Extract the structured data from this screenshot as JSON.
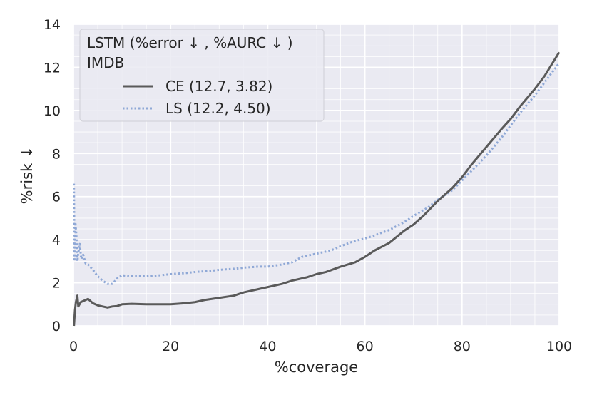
{
  "chart_data": {
    "type": "line",
    "xlabel": "%coverage",
    "ylabel": "%risk ↓",
    "xlim": [
      0,
      100
    ],
    "ylim": [
      0,
      14
    ],
    "xticks": [
      0,
      20,
      40,
      60,
      80,
      100
    ],
    "yticks": [
      0,
      2,
      4,
      6,
      8,
      10,
      12,
      14
    ],
    "grid": true,
    "legend_position": "top-left",
    "legend": {
      "title_line1": "LSTM (%error ↓ , %AURC ↓ )",
      "title_line2": "IMDB"
    },
    "series": [
      {
        "name": "CE (12.7, 3.82)",
        "style": "solid",
        "color": "#5a5a5a",
        "points": [
          [
            0.1,
            0.0
          ],
          [
            0.3,
            0.7
          ],
          [
            0.5,
            1.1
          ],
          [
            0.8,
            1.4
          ],
          [
            1.0,
            0.9
          ],
          [
            1.5,
            1.1
          ],
          [
            2.0,
            1.15
          ],
          [
            2.5,
            1.2
          ],
          [
            3.0,
            1.25
          ],
          [
            3.5,
            1.15
          ],
          [
            4.0,
            1.05
          ],
          [
            4.5,
            1.0
          ],
          [
            5.0,
            0.95
          ],
          [
            6.0,
            0.9
          ],
          [
            7.0,
            0.85
          ],
          [
            8.0,
            0.9
          ],
          [
            9.0,
            0.92
          ],
          [
            10.0,
            1.0
          ],
          [
            12.0,
            1.02
          ],
          [
            15.0,
            1.0
          ],
          [
            17.0,
            1.0
          ],
          [
            20.0,
            1.0
          ],
          [
            23.0,
            1.05
          ],
          [
            25.0,
            1.1
          ],
          [
            27.0,
            1.2
          ],
          [
            30.0,
            1.3
          ],
          [
            33.0,
            1.4
          ],
          [
            35.0,
            1.55
          ],
          [
            37.0,
            1.65
          ],
          [
            40.0,
            1.8
          ],
          [
            43.0,
            1.95
          ],
          [
            45.0,
            2.1
          ],
          [
            48.0,
            2.25
          ],
          [
            50.0,
            2.4
          ],
          [
            52.0,
            2.5
          ],
          [
            55.0,
            2.75
          ],
          [
            58.0,
            2.95
          ],
          [
            60.0,
            3.2
          ],
          [
            62.0,
            3.5
          ],
          [
            65.0,
            3.85
          ],
          [
            68.0,
            4.4
          ],
          [
            70.0,
            4.7
          ],
          [
            72.0,
            5.1
          ],
          [
            75.0,
            5.8
          ],
          [
            78.0,
            6.4
          ],
          [
            80.0,
            6.9
          ],
          [
            82.0,
            7.5
          ],
          [
            85.0,
            8.3
          ],
          [
            88.0,
            9.1
          ],
          [
            90.0,
            9.6
          ],
          [
            92.0,
            10.2
          ],
          [
            95.0,
            11.0
          ],
          [
            97.0,
            11.6
          ],
          [
            100.0,
            12.7
          ]
        ]
      },
      {
        "name": "LS (12.2, 4.50)",
        "style": "dotted",
        "color": "#8fa8d6",
        "points": [
          [
            0.1,
            6.6
          ],
          [
            0.2,
            3.0
          ],
          [
            0.4,
            4.8
          ],
          [
            0.6,
            4.2
          ],
          [
            0.8,
            3.0
          ],
          [
            1.0,
            3.4
          ],
          [
            1.3,
            3.8
          ],
          [
            1.6,
            3.1
          ],
          [
            2.0,
            3.3
          ],
          [
            2.5,
            2.9
          ],
          [
            3.0,
            2.85
          ],
          [
            4.0,
            2.6
          ],
          [
            5.0,
            2.3
          ],
          [
            6.0,
            2.1
          ],
          [
            7.0,
            1.95
          ],
          [
            8.0,
            1.95
          ],
          [
            9.0,
            2.2
          ],
          [
            10.0,
            2.35
          ],
          [
            12.0,
            2.3
          ],
          [
            15.0,
            2.3
          ],
          [
            18.0,
            2.35
          ],
          [
            20.0,
            2.4
          ],
          [
            23.0,
            2.45
          ],
          [
            25.0,
            2.5
          ],
          [
            28.0,
            2.55
          ],
          [
            30.0,
            2.6
          ],
          [
            33.0,
            2.65
          ],
          [
            35.0,
            2.7
          ],
          [
            38.0,
            2.75
          ],
          [
            40.0,
            2.75
          ],
          [
            43.0,
            2.85
          ],
          [
            45.0,
            2.95
          ],
          [
            47.0,
            3.2
          ],
          [
            50.0,
            3.35
          ],
          [
            53.0,
            3.5
          ],
          [
            55.0,
            3.7
          ],
          [
            58.0,
            3.95
          ],
          [
            60.0,
            4.05
          ],
          [
            62.0,
            4.2
          ],
          [
            65.0,
            4.45
          ],
          [
            68.0,
            4.8
          ],
          [
            70.0,
            5.1
          ],
          [
            73.0,
            5.5
          ],
          [
            75.0,
            5.85
          ],
          [
            78.0,
            6.3
          ],
          [
            80.0,
            6.75
          ],
          [
            82.0,
            7.2
          ],
          [
            85.0,
            7.9
          ],
          [
            88.0,
            8.7
          ],
          [
            90.0,
            9.3
          ],
          [
            92.0,
            9.9
          ],
          [
            95.0,
            10.7
          ],
          [
            97.0,
            11.3
          ],
          [
            100.0,
            12.2
          ]
        ]
      }
    ]
  }
}
